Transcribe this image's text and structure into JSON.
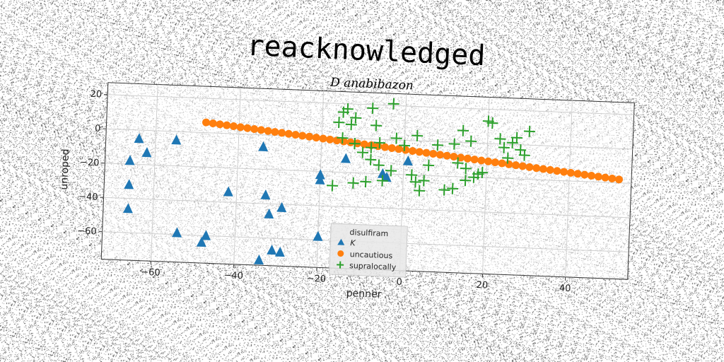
{
  "chart_data": {
    "type": "scatter",
    "suptitle": "reacknowledged",
    "title": "D anabibazon",
    "xlabel": "penner",
    "ylabel": "unroped",
    "xlim": [
      -72,
      55
    ],
    "ylim": [
      -76,
      27
    ],
    "xticks": [
      -60,
      -40,
      -20,
      0,
      20,
      40
    ],
    "xtick_labels": [
      "−60",
      "−40",
      "−20",
      "0",
      "20",
      "40"
    ],
    "yticks": [
      20,
      0,
      -20,
      -40,
      -60
    ],
    "ytick_labels": [
      "20",
      "0",
      "−20",
      "−40",
      "−60"
    ],
    "grid": true,
    "legend": {
      "title": "disulfiram",
      "placement": "lower-center"
    },
    "series": [
      {
        "name": "K",
        "marker": "triangle",
        "color": "#1f77b4",
        "points": [
          [
            -64,
            -5
          ],
          [
            -55,
            -5
          ],
          [
            -66,
            -18
          ],
          [
            -62,
            -13
          ],
          [
            -66,
            -32
          ],
          [
            -66,
            -46
          ],
          [
            -54,
            -59
          ],
          [
            -48,
            -64
          ],
          [
            -47,
            -60
          ],
          [
            -42,
            -34
          ],
          [
            -34,
            -7
          ],
          [
            -33,
            -35
          ],
          [
            -32,
            -46
          ],
          [
            -29,
            -42
          ],
          [
            -31,
            -67
          ],
          [
            -29,
            -68
          ],
          [
            -34,
            -73
          ],
          [
            -20,
            -25
          ],
          [
            -20,
            -22
          ],
          [
            -20,
            -58
          ],
          [
            -14,
            -12
          ],
          [
            -5,
            -20
          ],
          [
            -4,
            -22
          ],
          [
            1,
            -12
          ]
        ]
      },
      {
        "name": "uncautious",
        "marker": "circle",
        "color": "#ff7f0e",
        "line_from": [
          -48,
          6
        ],
        "line_to": [
          52,
          -18
        ],
        "count": 61
      },
      {
        "name": "supralocally",
        "marker": "plus",
        "color": "#2ca02c",
        "points": [
          [
            -15,
            15
          ],
          [
            -14,
            17
          ],
          [
            -13,
            8
          ],
          [
            -12,
            12
          ],
          [
            -16,
            9
          ],
          [
            -8,
            18
          ],
          [
            -7,
            8
          ],
          [
            -3,
            21
          ],
          [
            -15,
            0
          ],
          [
            -12,
            -3
          ],
          [
            -8,
            -5
          ],
          [
            -6,
            -2
          ],
          [
            -10,
            -8
          ],
          [
            -2,
            1
          ],
          [
            0,
            -3
          ],
          [
            3,
            3
          ],
          [
            -8,
            -12
          ],
          [
            -6,
            -15
          ],
          [
            -3,
            -18
          ],
          [
            -5,
            -24
          ],
          [
            -9,
            -25
          ],
          [
            -17,
            -28
          ],
          [
            -12,
            -26
          ],
          [
            2,
            -20
          ],
          [
            3,
            -24
          ],
          [
            5,
            -23
          ],
          [
            4,
            -29
          ],
          [
            6,
            -14
          ],
          [
            8,
            -2
          ],
          [
            12,
            -1
          ],
          [
            14,
            7
          ],
          [
            16,
            1
          ],
          [
            13,
            -12
          ],
          [
            15,
            -15
          ],
          [
            17,
            -20
          ],
          [
            12,
            -27
          ],
          [
            18,
            -18
          ],
          [
            20,
            13
          ],
          [
            21,
            12
          ],
          [
            23,
            3
          ],
          [
            24,
            -2
          ],
          [
            25,
            -8
          ],
          [
            27,
            4
          ],
          [
            28,
            -3
          ],
          [
            30,
            8
          ],
          [
            29,
            -6
          ],
          [
            19,
            -17
          ],
          [
            15,
            -22
          ],
          [
            10,
            -28
          ],
          [
            26,
            1
          ]
        ]
      }
    ]
  }
}
